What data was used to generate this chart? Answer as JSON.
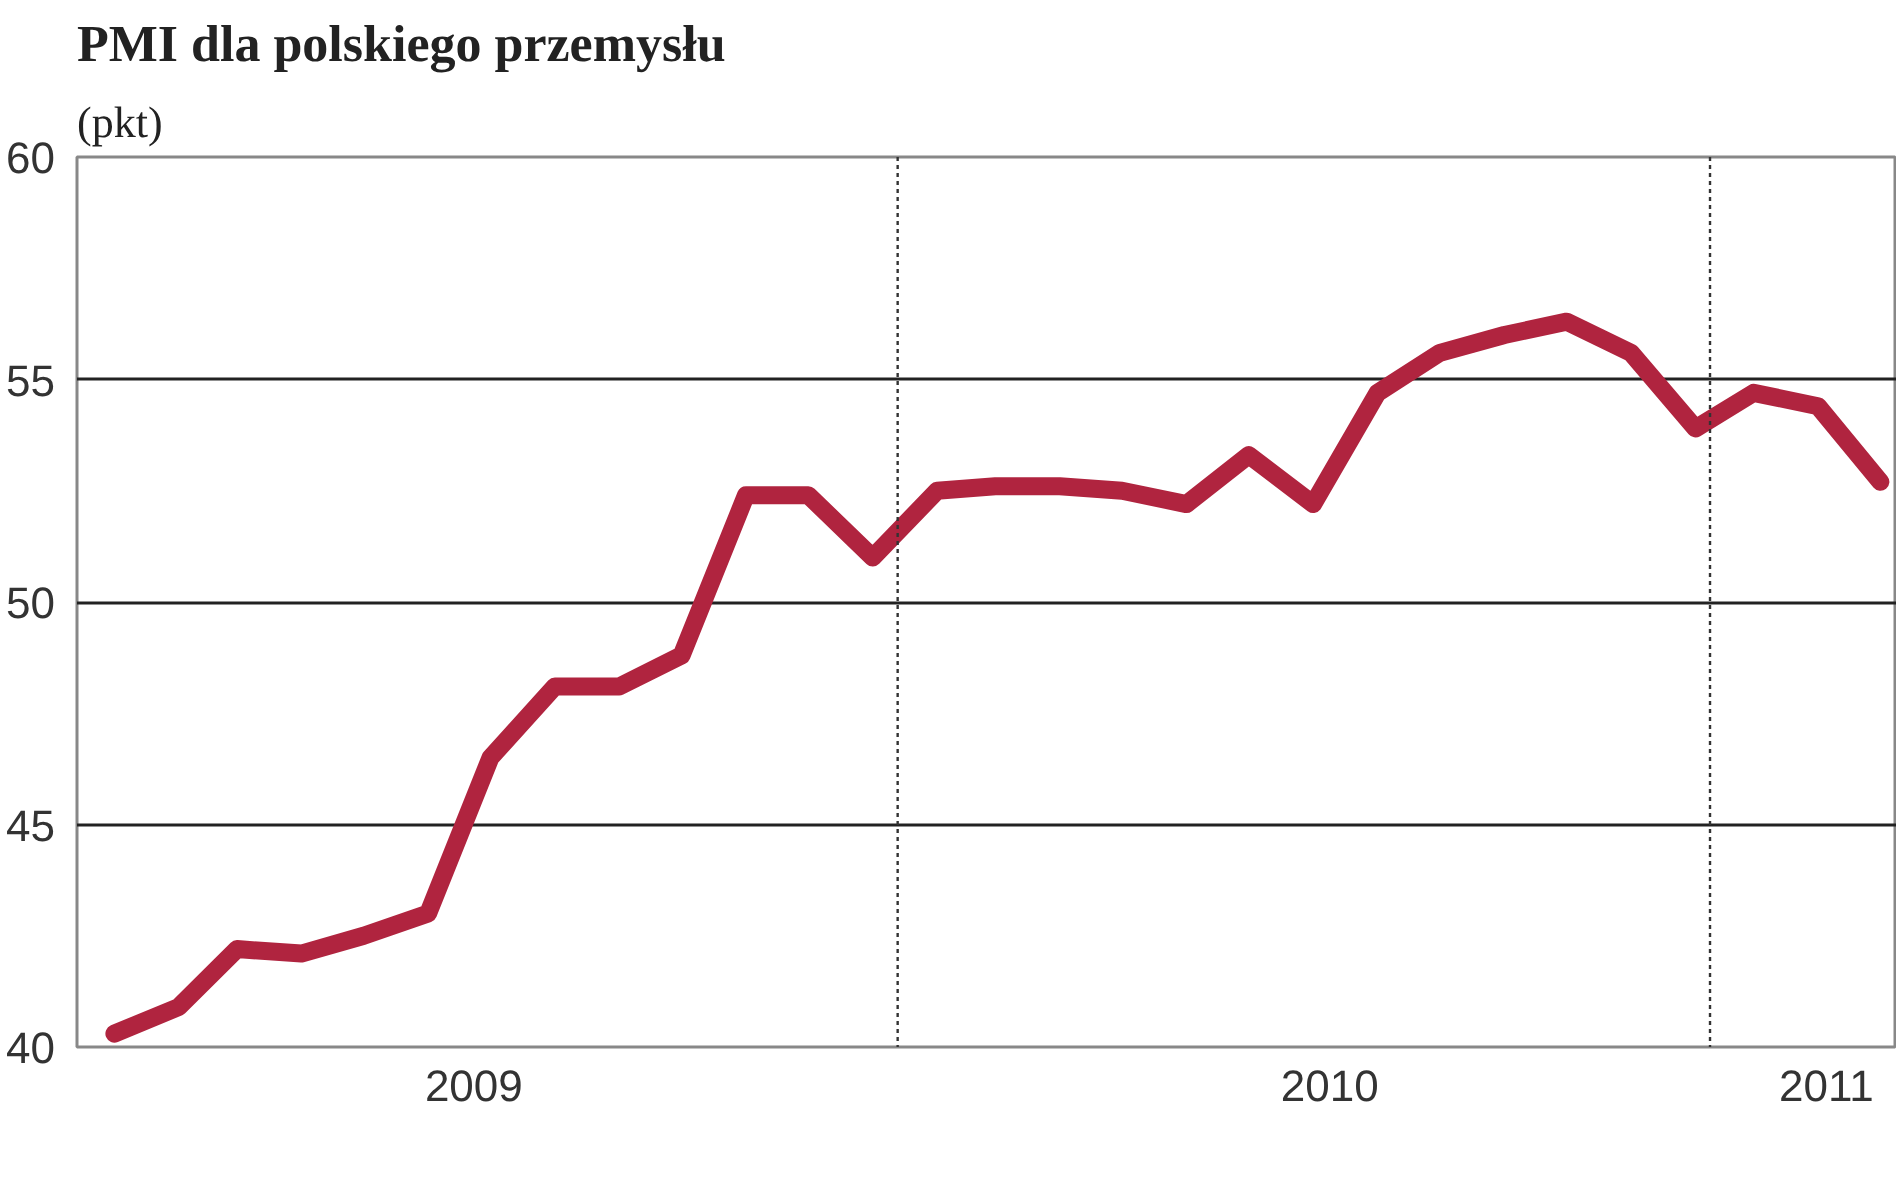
{
  "chart_data": {
    "type": "line",
    "title": "PMI dla polskiego przemysłu",
    "subtitle": "(pkt)",
    "x": [
      "2009-01",
      "2009-02",
      "2009-03",
      "2009-04",
      "2009-05",
      "2009-06",
      "2009-07",
      "2009-08",
      "2009-09",
      "2009-10",
      "2009-11",
      "2009-12",
      "2010-01",
      "2010-02",
      "2010-03",
      "2010-04",
      "2010-05",
      "2010-06",
      "2010-07",
      "2010-08",
      "2010-09",
      "2010-10",
      "2010-11",
      "2010-12",
      "2011-01",
      "2011-02",
      "2011-03",
      "2011-04",
      "2011-05"
    ],
    "series": [
      {
        "color": "#b0243f",
        "values": [
          40.3,
          40.9,
          42.2,
          42.1,
          42.5,
          43.0,
          46.5,
          48.1,
          48.1,
          48.8,
          52.4,
          52.4,
          51.0,
          52.5,
          52.6,
          52.6,
          52.5,
          52.2,
          53.3,
          52.2,
          54.7,
          55.6,
          56.0,
          56.3,
          55.6,
          53.9,
          54.7,
          54.4,
          52.7
        ]
      }
    ],
    "xlim": [
      "2008-12-14",
      "2011-05-09"
    ],
    "xticks": [
      {
        "value": "2009-06-23",
        "label": "2009"
      },
      {
        "value": "2010-08-09",
        "label": "2010"
      },
      {
        "value": "2011-04-05",
        "label": "2011"
      }
    ],
    "ylim": [
      40,
      60
    ],
    "yticks": [
      40,
      45,
      50,
      55,
      60
    ],
    "grid": "y",
    "marker": "none",
    "line_style": "solid",
    "ref_lines": [
      {
        "axis": "x",
        "value": "2010-01-13",
        "label": null,
        "color": "#333333",
        "line_style": "dotted"
      },
      {
        "axis": "x",
        "value": "2011-02-08",
        "label": null,
        "color": "#333333",
        "line_style": "dotted"
      }
    ]
  }
}
